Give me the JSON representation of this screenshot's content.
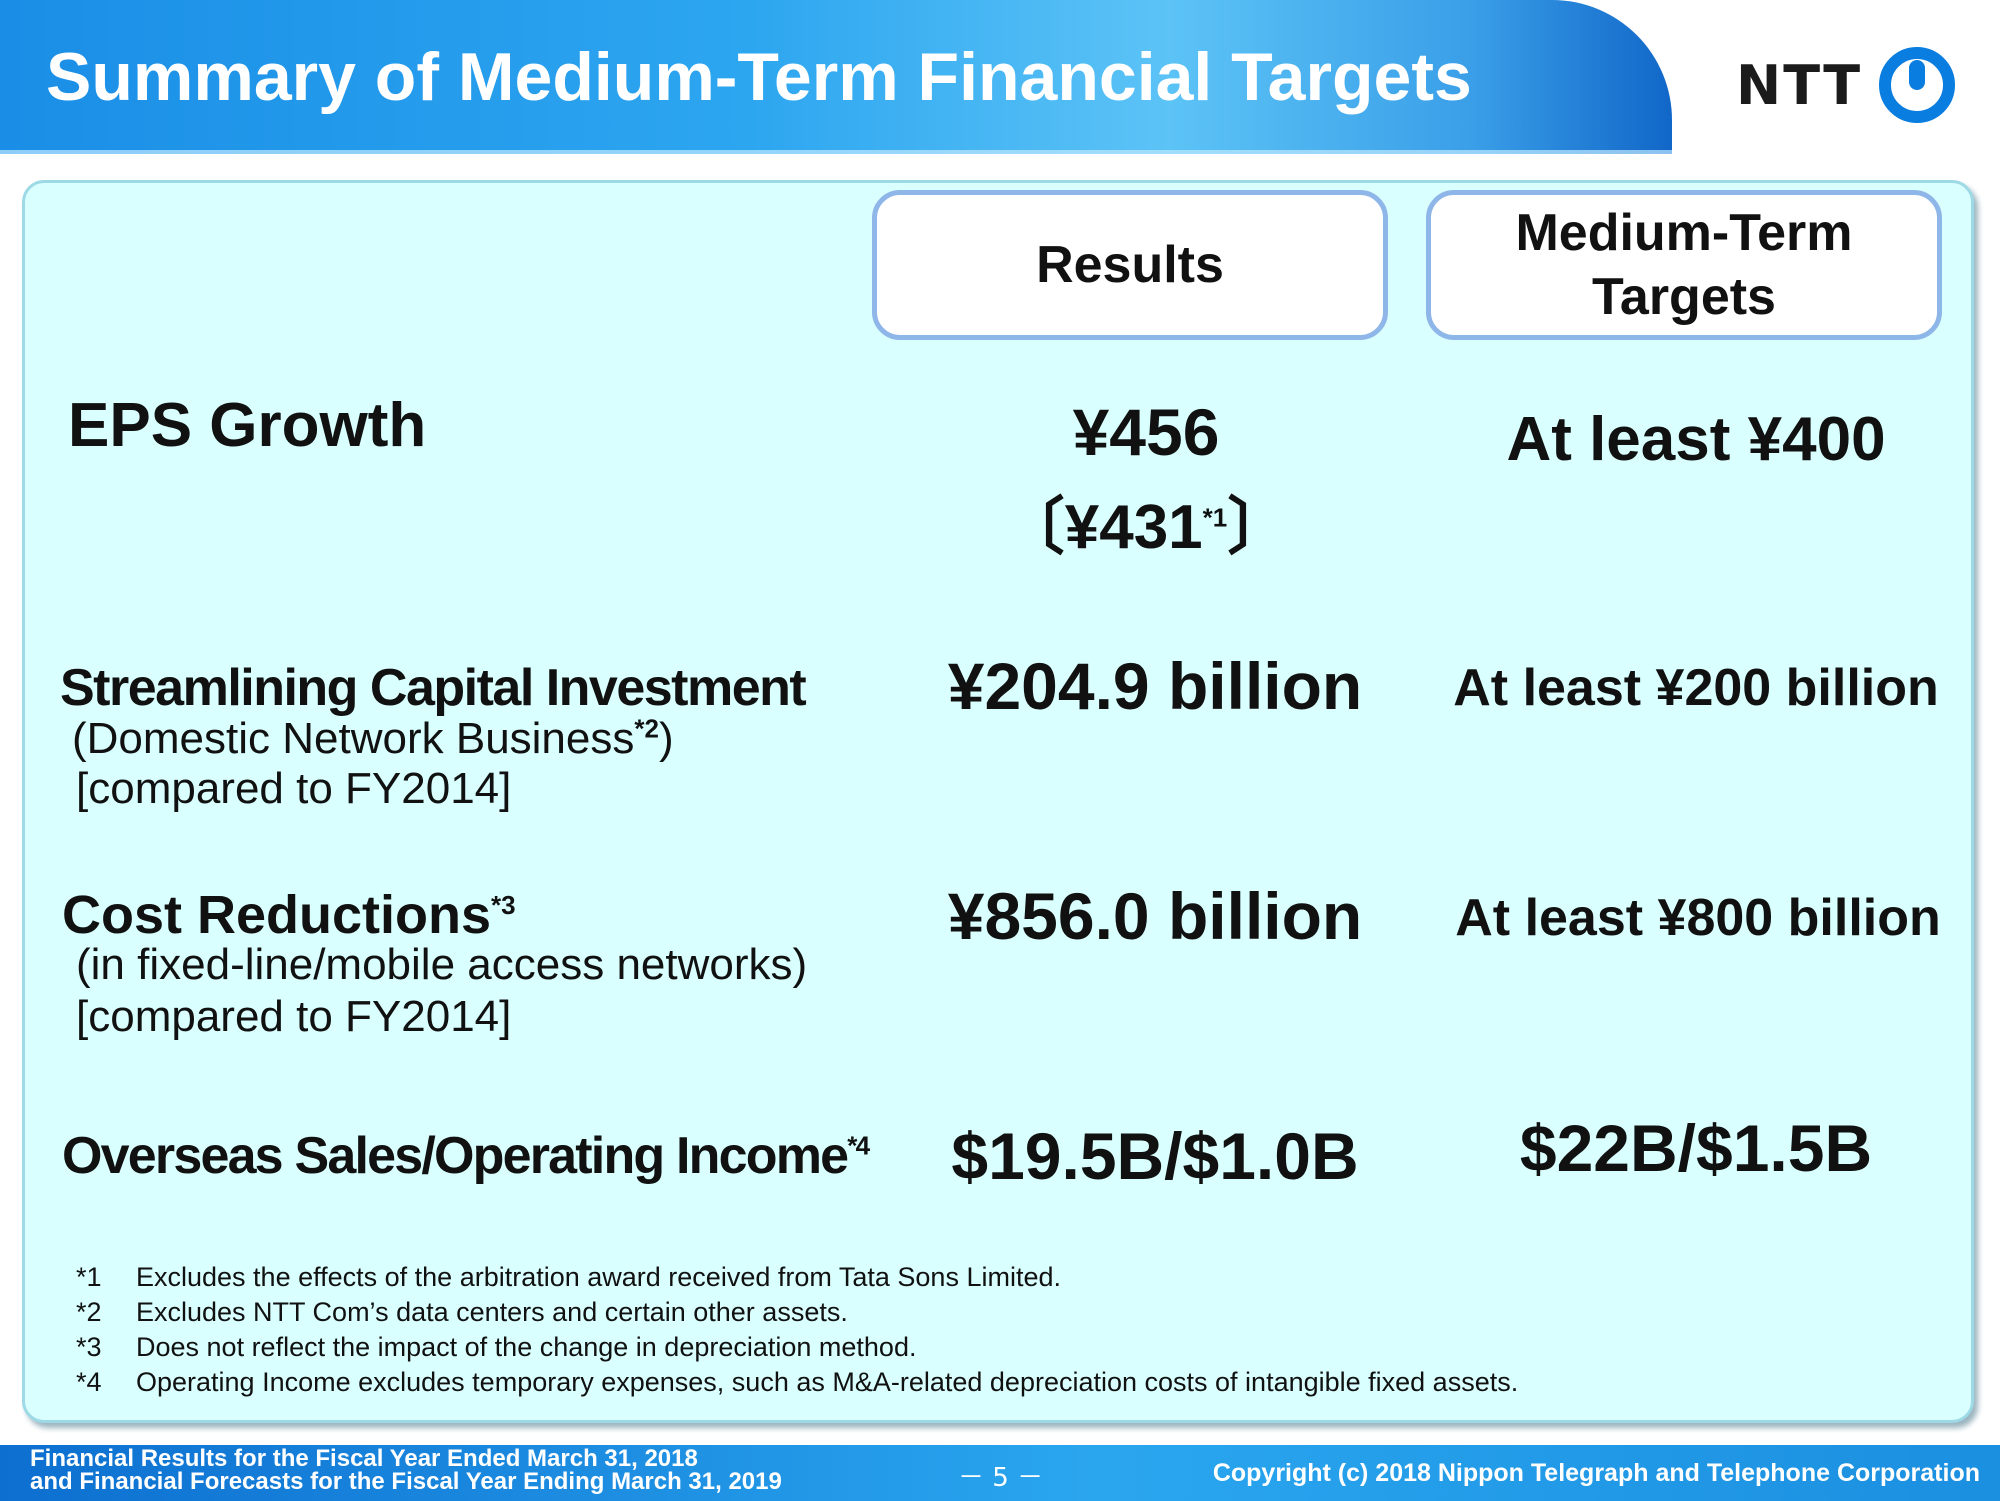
{
  "header": {
    "title": "Summary of Medium-Term Financial Targets",
    "logo_text": "NTT"
  },
  "columns": {
    "results_label": "Results",
    "targets_label_line1": "Medium-Term",
    "targets_label_line2": "Targets"
  },
  "rows": {
    "eps": {
      "title": "EPS Growth",
      "result_main": "¥456",
      "result_alt_open": "〔",
      "result_alt": "¥431",
      "result_alt_mark": "*1",
      "result_alt_close": "〕",
      "target": "At least ¥400"
    },
    "capex": {
      "title": "Streamlining Capital Investment",
      "sub1_pre": "(Domestic Network Business",
      "sub1_mark": "*2",
      "sub1_post": ")",
      "sub2": "[compared to FY2014]",
      "result": "¥204.9 billion",
      "target": "At least ¥200 billion"
    },
    "cost": {
      "title": "Cost Reductions",
      "title_mark": "*3",
      "sub1": "(in fixed-line/mobile access networks)",
      "sub2": "[compared to FY2014]",
      "result": "¥856.0 billion",
      "target": "At least ¥800 billion"
    },
    "overseas": {
      "title": "Overseas Sales/Operating Income",
      "title_mark": "*4",
      "result": "$19.5B/$1.0B",
      "target": "$22B/$1.5B"
    }
  },
  "notes": [
    {
      "mark": "*1",
      "text": "Excludes the effects of the arbitration award received from Tata Sons Limited."
    },
    {
      "mark": "*2",
      "text": "Excludes NTT Com’s data centers and certain other assets."
    },
    {
      "mark": "*3",
      "text": "Does not reflect the impact of the change in depreciation method."
    },
    {
      "mark": "*4",
      "text": "Operating Income excludes temporary expenses, such as M&A-related depreciation costs of intangible fixed assets."
    }
  ],
  "footer": {
    "left_line1": "Financial Results for the Fiscal Year Ended March 31, 2018",
    "left_line2": "and Financial Forecasts for the Fiscal Year Ending March 31, 2019",
    "page": "－ 5 －",
    "copyright": "Copyright (c) 2018  Nippon Telegraph and Telephone Corporation"
  },
  "colors": {
    "panel_bg": "#d9ffff",
    "title_blue": "#1a8ee6",
    "logo_blue": "#0a7de0"
  }
}
